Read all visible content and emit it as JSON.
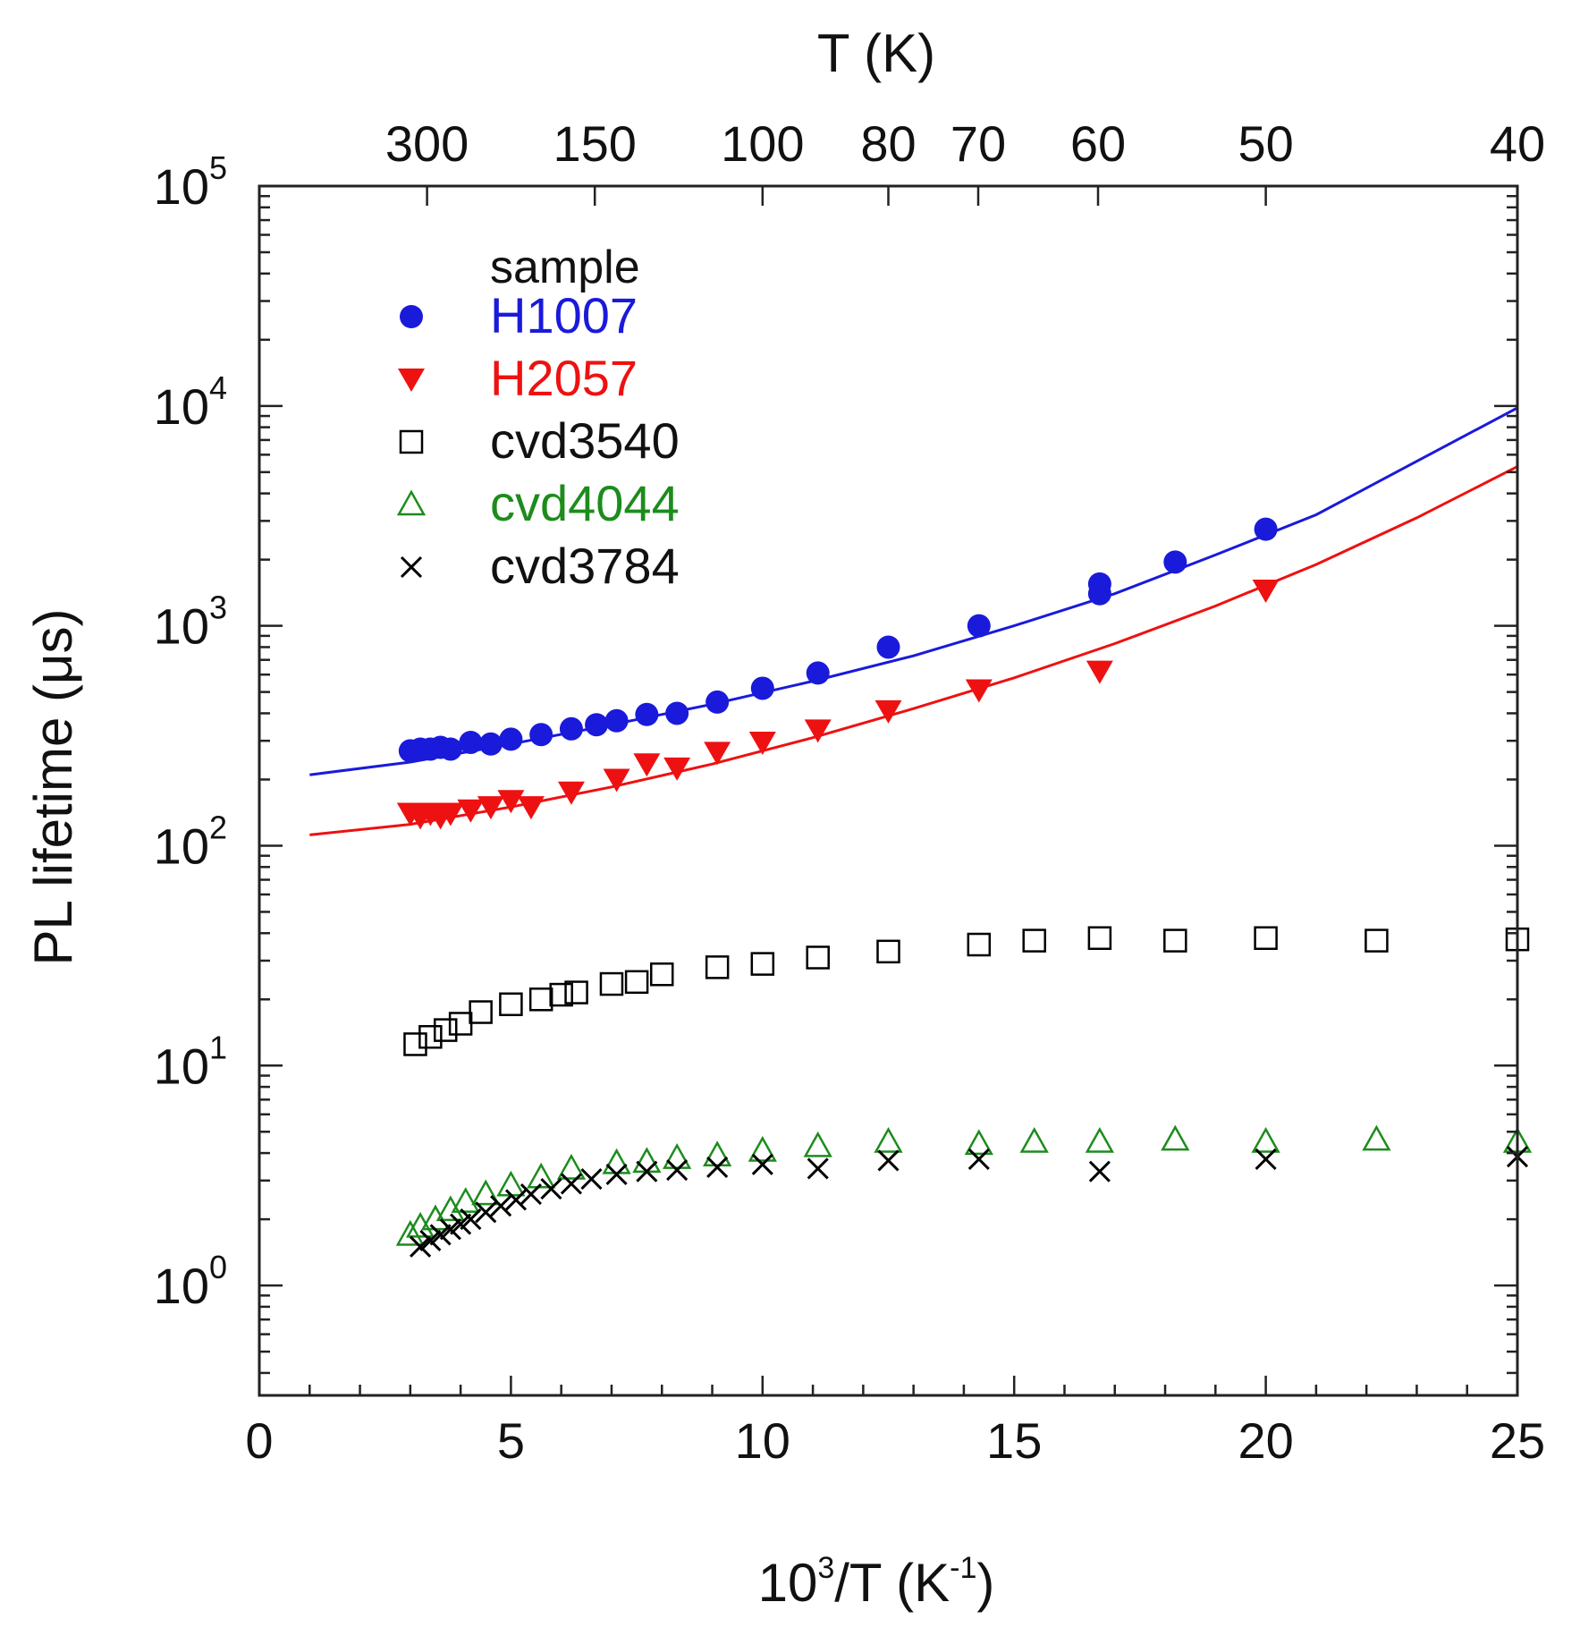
{
  "chart_data": {
    "type": "scatter",
    "title": "",
    "xlabel": {
      "base": "10",
      "sup": "3",
      "rest": "/T (K",
      "sup2": "-1",
      "end": ")"
    },
    "ylabel": "PL lifetime (μs)",
    "top_axis_label": "T (K)",
    "xlim": [
      0,
      25
    ],
    "ylim_log10": [
      -0.5,
      5
    ],
    "x_ticks": [
      0,
      5,
      10,
      15,
      20,
      25
    ],
    "x_tick_labels": [
      "0",
      "5",
      "10",
      "15",
      "20",
      "25"
    ],
    "y_ticks": [
      {
        "base": "10",
        "exp": "0",
        "log": 0
      },
      {
        "base": "10",
        "exp": "1",
        "log": 1
      },
      {
        "base": "10",
        "exp": "2",
        "log": 2
      },
      {
        "base": "10",
        "exp": "3",
        "log": 3
      },
      {
        "base": "10",
        "exp": "4",
        "log": 4
      },
      {
        "base": "10",
        "exp": "5",
        "log": 5
      }
    ],
    "top_ticks": [
      {
        "T": 300,
        "label": "300"
      },
      {
        "T": 150,
        "label": "150"
      },
      {
        "T": 100,
        "label": "100"
      },
      {
        "T": 80,
        "label": "80"
      },
      {
        "T": 70,
        "label": "70"
      },
      {
        "T": 60,
        "label": "60"
      },
      {
        "T": 50,
        "label": "50"
      },
      {
        "T": 40,
        "label": "40"
      }
    ],
    "legend": {
      "title": "sample",
      "position": "top-left"
    },
    "series": [
      {
        "name": "H1007",
        "color": "#1a1adb",
        "marker": "circle",
        "x": [
          3.0,
          3.2,
          3.4,
          3.6,
          3.8,
          4.2,
          4.6,
          5.0,
          5.6,
          6.2,
          6.7,
          7.1,
          7.7,
          8.3,
          9.1,
          10.0,
          11.1,
          12.5,
          14.3,
          16.7,
          16.7,
          18.2,
          20.0
        ],
        "y": [
          270,
          275,
          275,
          280,
          275,
          295,
          290,
          305,
          320,
          340,
          355,
          370,
          395,
          400,
          450,
          520,
          610,
          800,
          1000,
          1400,
          1550,
          1950,
          2750
        ]
      },
      {
        "name": "H2057",
        "color": "#ee1111",
        "marker": "triangle-down",
        "x": [
          3.0,
          3.2,
          3.4,
          3.6,
          3.8,
          4.2,
          4.6,
          5.0,
          5.4,
          6.2,
          7.1,
          7.7,
          8.3,
          9.1,
          10.0,
          11.1,
          12.5,
          14.3,
          16.7,
          20.0
        ],
        "y": [
          140,
          135,
          140,
          135,
          140,
          145,
          150,
          160,
          150,
          175,
          200,
          235,
          225,
          265,
          295,
          335,
          410,
          510,
          620,
          1450
        ]
      },
      {
        "name": "cvd3540",
        "color": "#000000",
        "marker": "square-open",
        "x": [
          3.1,
          3.4,
          3.7,
          4.0,
          4.4,
          5.0,
          5.6,
          6.0,
          6.3,
          7.0,
          7.5,
          8.0,
          9.1,
          10.0,
          11.1,
          12.5,
          14.3,
          15.4,
          16.7,
          18.2,
          20.0,
          22.2,
          25.0
        ],
        "y": [
          12.5,
          13.5,
          14.5,
          15.5,
          17.5,
          19,
          20,
          21,
          21.5,
          23.5,
          24,
          26,
          28,
          29,
          31,
          33,
          35.5,
          37,
          38,
          37,
          38,
          37,
          37.5
        ]
      },
      {
        "name": "cvd4044",
        "color": "#1c8c1c",
        "marker": "triangle-open",
        "x": [
          3.0,
          3.2,
          3.5,
          3.8,
          4.1,
          4.5,
          5.0,
          5.6,
          6.2,
          7.1,
          7.7,
          8.3,
          9.1,
          10.0,
          11.1,
          12.5,
          14.3,
          15.4,
          16.7,
          18.2,
          20.0,
          22.2,
          25.0
        ],
        "y": [
          1.7,
          1.85,
          2.0,
          2.2,
          2.4,
          2.6,
          2.85,
          3.1,
          3.4,
          3.6,
          3.65,
          3.8,
          3.9,
          4.1,
          4.3,
          4.5,
          4.4,
          4.5,
          4.5,
          4.6,
          4.5,
          4.6,
          4.5
        ]
      },
      {
        "name": "cvd3784",
        "color": "#000000",
        "marker": "x",
        "x": [
          3.2,
          3.4,
          3.6,
          3.8,
          4.0,
          4.2,
          4.5,
          4.8,
          5.1,
          5.4,
          5.8,
          6.2,
          6.6,
          7.1,
          7.7,
          8.3,
          9.1,
          10.0,
          11.1,
          12.5,
          14.3,
          16.7,
          20.0,
          25.0
        ],
        "y": [
          1.5,
          1.6,
          1.7,
          1.8,
          1.9,
          2.0,
          2.15,
          2.3,
          2.45,
          2.6,
          2.75,
          2.9,
          3.05,
          3.2,
          3.3,
          3.35,
          3.45,
          3.55,
          3.4,
          3.7,
          3.75,
          3.3,
          3.75,
          3.85
        ]
      }
    ],
    "fits": [
      {
        "name": "H1007 fit",
        "color": "#1a1adb",
        "x": [
          1,
          3,
          5,
          7,
          9,
          11,
          13,
          15,
          17,
          19,
          21,
          23,
          25
        ],
        "y": [
          210,
          240,
          290,
          355,
          440,
          560,
          730,
          1000,
          1400,
          2100,
          3200,
          5600,
          9800
        ]
      },
      {
        "name": "H2057 fit",
        "color": "#ee1111",
        "x": [
          1,
          3,
          5,
          7,
          9,
          11,
          13,
          15,
          17,
          19,
          21,
          23,
          25
        ],
        "y": [
          112,
          125,
          150,
          185,
          235,
          310,
          420,
          580,
          830,
          1230,
          1900,
          3100,
          5300
        ]
      }
    ]
  }
}
